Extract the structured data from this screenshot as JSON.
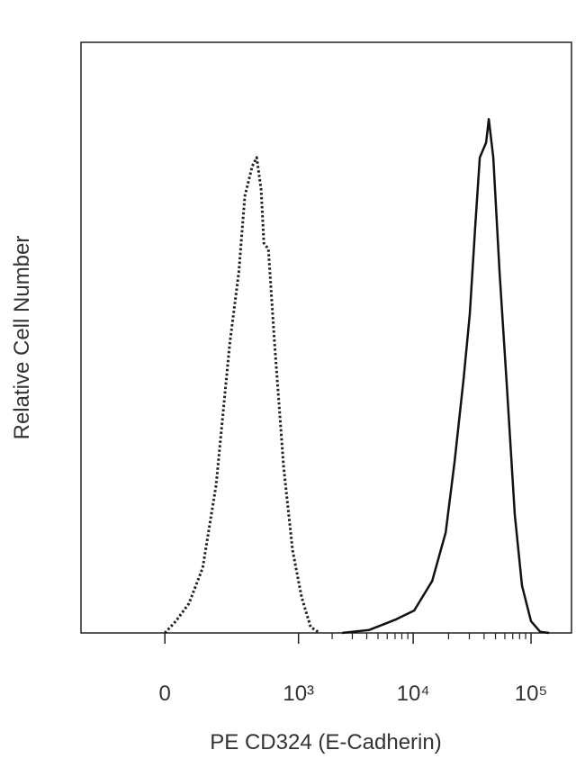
{
  "chart_data": {
    "type": "histogram-overlay",
    "x_label": "PE CD324 (E-Cadherin)",
    "y_label": "Relative Cell Number",
    "xscale": "biexponential",
    "xlim": [
      -330,
      220000
    ],
    "ylim": [
      0,
      100
    ],
    "xticks": [
      0,
      {
        "value": 1000,
        "label": "10³"
      },
      {
        "value": 10000,
        "label": "10⁴"
      },
      {
        "value": 100000,
        "label": "10⁵"
      }
    ],
    "series": [
      {
        "line_style": "dotted",
        "color": "#222222",
        "x": [
          0,
          19,
          48,
          87,
          137,
          203,
          257,
          300,
          358,
          398,
          442,
          470,
          520,
          598,
          729,
          883,
          1068,
          1288,
          1550
        ],
        "values": [
          0,
          2,
          5,
          11,
          25,
          49,
          61,
          74,
          79,
          80.5,
          75,
          66,
          65,
          49,
          28,
          14,
          6,
          1,
          0
        ]
      },
      {
        "line_style": "solid",
        "color": "#111111",
        "x": [
          2450,
          4200,
          7150,
          10200,
          14500,
          18900,
          22500,
          26800,
          30300,
          33700,
          36800,
          41600,
          43900,
          47900,
          54200,
          62300,
          72900,
          83900,
          99900,
          119400,
          142200
        ],
        "values": [
          0,
          0.5,
          2.3,
          3.8,
          8.8,
          17,
          29,
          43,
          54,
          69,
          80.5,
          83,
          87,
          80.5,
          61,
          42,
          20,
          8,
          2,
          0.2,
          0
        ]
      }
    ]
  }
}
